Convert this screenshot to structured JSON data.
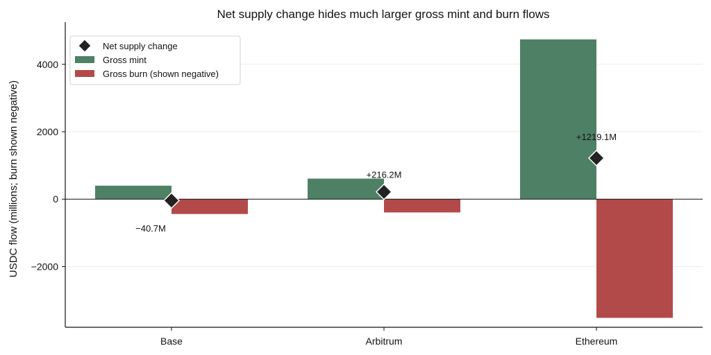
{
  "chart_data": {
    "type": "bar",
    "title": "Net supply change hides much larger gross mint and burn flows",
    "xlabel": "",
    "ylabel": "USDC flow (millions; burn shown negative)",
    "categories": [
      "Base",
      "Arbitrum",
      "Ethereum"
    ],
    "series": [
      {
        "name": "Gross mint",
        "values": [
          400,
          610,
          4740
        ],
        "color": "#4e8066"
      },
      {
        "name": "Gross burn (shown negative)",
        "values": [
          -440,
          -394,
          -3521
        ],
        "color": "#b34a4a"
      },
      {
        "name": "Net supply change",
        "values": [
          -40.7,
          216.2,
          1219.1
        ],
        "color": "#222222",
        "marker": "diamond"
      }
    ],
    "annotations": [
      "−40.7M",
      "+216.2M",
      "+1219.1M"
    ],
    "ylim": [
      -3800,
      5250
    ],
    "yticks": [
      -2000,
      0,
      2000,
      4000
    ],
    "ytick_labels": [
      "−2000",
      "0",
      "2000",
      "4000"
    ],
    "grid": "y",
    "legend_position": "top-left"
  }
}
